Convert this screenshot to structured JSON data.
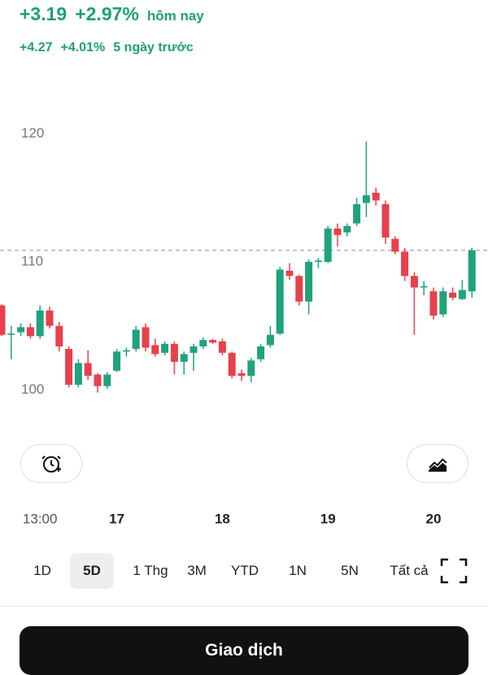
{
  "header": {
    "change": "+3.19",
    "change_pct": "+2.97%",
    "period": "hôm nay",
    "change_5d": "+4.27",
    "change_pct_5d": "+4.01%",
    "period_5d": "5 ngày trước"
  },
  "chart": {
    "type": "candlestick",
    "up_color": "#1fa37c",
    "down_color": "#e8404c",
    "ylim": [
      99,
      121
    ],
    "yticks": [
      100,
      110,
      120
    ],
    "reference_line": 110.9,
    "categories": [
      null,
      null,
      null,
      null,
      "13:00",
      null,
      null,
      null,
      null,
      null,
      null,
      null,
      "17",
      null,
      null,
      null,
      null,
      null,
      null,
      null,
      null,
      null,
      null,
      "18",
      null,
      null,
      null,
      null,
      null,
      null,
      null,
      null,
      null,
      null,
      "19",
      null,
      null,
      null,
      null,
      null,
      null,
      null,
      null,
      null,
      null,
      "20",
      null,
      null,
      null,
      null
    ],
    "candles": [
      {
        "open": 106.6,
        "high": 106.7,
        "low": 104.2,
        "close": 104.3
      },
      {
        "open": 104.3,
        "high": 105,
        "low": 102.4,
        "close": 104.4
      },
      {
        "open": 104.5,
        "high": 105.2,
        "low": 104.2,
        "close": 104.9
      },
      {
        "open": 104.9,
        "high": 105.2,
        "low": 104,
        "close": 104.2
      },
      {
        "open": 104.2,
        "high": 106.6,
        "low": 104,
        "close": 106.2
      },
      {
        "open": 106.2,
        "high": 106.5,
        "low": 104.8,
        "close": 105
      },
      {
        "open": 105,
        "high": 105.3,
        "low": 103,
        "close": 103.4
      },
      {
        "open": 103.2,
        "high": 103.4,
        "low": 100.2,
        "close": 100.4
      },
      {
        "open": 100.4,
        "high": 102.4,
        "low": 100.2,
        "close": 102.1
      },
      {
        "open": 102.1,
        "high": 103.1,
        "low": 100.8,
        "close": 101.1
      },
      {
        "open": 101.2,
        "high": 101.3,
        "low": 99.8,
        "close": 100.3
      },
      {
        "open": 100.3,
        "high": 101.4,
        "low": 100.1,
        "close": 101.2
      },
      {
        "open": 101.5,
        "high": 103.2,
        "low": 101.4,
        "close": 103
      },
      {
        "open": 103,
        "high": 103.3,
        "low": 102.6,
        "close": 103.1
      },
      {
        "open": 103.2,
        "high": 105,
        "low": 103,
        "close": 104.7
      },
      {
        "open": 104.9,
        "high": 105.2,
        "low": 103,
        "close": 103.3
      },
      {
        "open": 103.5,
        "high": 104,
        "low": 102.6,
        "close": 102.8
      },
      {
        "open": 102.9,
        "high": 103.8,
        "low": 102.7,
        "close": 103.6
      },
      {
        "open": 103.6,
        "high": 103.8,
        "low": 101.2,
        "close": 102.2
      },
      {
        "open": 102.2,
        "high": 103,
        "low": 101.2,
        "close": 102.8
      },
      {
        "open": 102.9,
        "high": 103.6,
        "low": 101.5,
        "close": 103.4
      },
      {
        "open": 103.4,
        "high": 104.1,
        "low": 103.2,
        "close": 103.9
      },
      {
        "open": 103.9,
        "high": 104,
        "low": 103.6,
        "close": 103.7
      },
      {
        "open": 103.8,
        "high": 104,
        "low": 102.7,
        "close": 102.9
      },
      {
        "open": 102.9,
        "high": 103,
        "low": 100.9,
        "close": 101.1
      },
      {
        "open": 101.3,
        "high": 101.6,
        "low": 100.7,
        "close": 101.1
      },
      {
        "open": 101.1,
        "high": 102.5,
        "low": 100.6,
        "close": 102.3
      },
      {
        "open": 102.4,
        "high": 103.6,
        "low": 102.2,
        "close": 103.4
      },
      {
        "open": 103.5,
        "high": 105,
        "low": 103.3,
        "close": 104.3
      },
      {
        "open": 104.4,
        "high": 109.6,
        "low": 104.3,
        "close": 109.4
      },
      {
        "open": 109.3,
        "high": 109.9,
        "low": 108.6,
        "close": 108.9
      },
      {
        "open": 108.9,
        "high": 109,
        "low": 106.6,
        "close": 106.9
      },
      {
        "open": 106.9,
        "high": 110.2,
        "low": 105.9,
        "close": 110
      },
      {
        "open": 110,
        "high": 110.3,
        "low": 109.5,
        "close": 110.1
      },
      {
        "open": 110,
        "high": 112.8,
        "low": 109.9,
        "close": 112.6
      },
      {
        "open": 112.6,
        "high": 113,
        "low": 111.2,
        "close": 112.1
      },
      {
        "open": 112.3,
        "high": 113,
        "low": 112,
        "close": 112.8
      },
      {
        "open": 113,
        "high": 115,
        "low": 112.8,
        "close": 114.5
      },
      {
        "open": 114.6,
        "high": 119.4,
        "low": 113.5,
        "close": 115.2
      },
      {
        "open": 115.4,
        "high": 115.8,
        "low": 114.4,
        "close": 114.8
      },
      {
        "open": 114.5,
        "high": 114.8,
        "low": 111.4,
        "close": 111.9
      },
      {
        "open": 111.8,
        "high": 112,
        "low": 110.6,
        "close": 110.8
      },
      {
        "open": 110.8,
        "high": 111.1,
        "low": 108.5,
        "close": 108.9
      },
      {
        "open": 108.9,
        "high": 109.2,
        "low": 104.3,
        "close": 108
      },
      {
        "open": 108,
        "high": 108.5,
        "low": 107.4,
        "close": 108.1
      },
      {
        "open": 107.7,
        "high": 108,
        "low": 105.5,
        "close": 105.8
      },
      {
        "open": 105.9,
        "high": 108,
        "low": 105.7,
        "close": 107.7
      },
      {
        "open": 107.6,
        "high": 108,
        "low": 107,
        "close": 107.2
      },
      {
        "open": 107.1,
        "high": 108.6,
        "low": 107,
        "close": 107.8
      },
      {
        "open": 107.7,
        "high": 111.1,
        "low": 107.2,
        "close": 110.9
      }
    ]
  },
  "ranges": [
    "1D",
    "5D",
    "1 Thg",
    "3M",
    "YTD",
    "1N",
    "5N",
    "Tất cả"
  ],
  "selected_range": 1,
  "action_button": "Giao dịch"
}
